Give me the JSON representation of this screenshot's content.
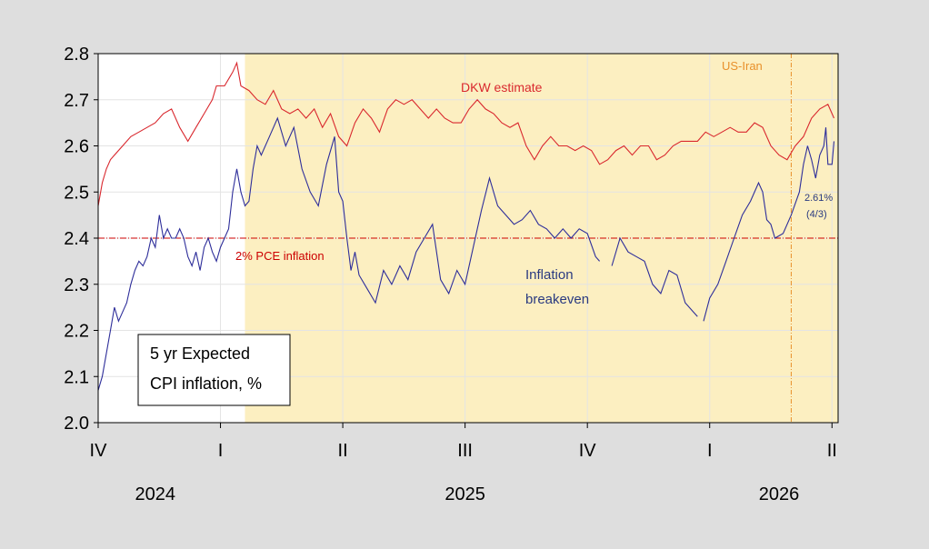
{
  "chart_data": {
    "type": "line",
    "title_lines": [
      "5 yr Expected",
      "CPI inflation, %"
    ],
    "ylim": [
      2.0,
      2.8
    ],
    "yticks": [
      "2.0",
      "2.1",
      "2.2",
      "2.3",
      "2.4",
      "2.5",
      "2.6",
      "2.7",
      "2.8"
    ],
    "x_range_months": [
      0,
      18.15
    ],
    "quarter_ticks": [
      {
        "label": "IV",
        "m": 0
      },
      {
        "label": "I",
        "m": 3
      },
      {
        "label": "II",
        "m": 6
      },
      {
        "label": "III",
        "m": 9
      },
      {
        "label": "IV",
        "m": 12
      },
      {
        "label": "I",
        "m": 15
      },
      {
        "label": "II",
        "m": 18
      }
    ],
    "years": [
      {
        "label": "2024",
        "m": 1.4
      },
      {
        "label": "2025",
        "m": 9.0
      },
      {
        "label": "2026",
        "m": 16.7
      }
    ],
    "shade_start_m": 3.6,
    "reference_line": {
      "value": 2.4,
      "label": "2% PCE inflation",
      "color": "#cc0000"
    },
    "event_line": {
      "m": 17.0,
      "label": "US-Iran",
      "color": "#e8902a"
    },
    "shade_color": "#fcefc1",
    "series": [
      {
        "name": "DKW estimate",
        "color": "#d9282e",
        "points": [
          [
            0,
            2.47
          ],
          [
            0.1,
            2.52
          ],
          [
            0.2,
            2.55
          ],
          [
            0.3,
            2.57
          ],
          [
            0.4,
            2.58
          ],
          [
            0.6,
            2.6
          ],
          [
            0.8,
            2.62
          ],
          [
            1.0,
            2.63
          ],
          [
            1.2,
            2.64
          ],
          [
            1.4,
            2.65
          ],
          [
            1.6,
            2.67
          ],
          [
            1.8,
            2.68
          ],
          [
            2.0,
            2.64
          ],
          [
            2.2,
            2.61
          ],
          [
            2.4,
            2.64
          ],
          [
            2.6,
            2.67
          ],
          [
            2.8,
            2.7
          ],
          [
            2.9,
            2.73
          ],
          [
            3.1,
            2.73
          ],
          [
            3.3,
            2.76
          ],
          [
            3.4,
            2.78
          ],
          [
            3.5,
            2.73
          ],
          [
            3.7,
            2.72
          ],
          [
            3.9,
            2.7
          ],
          [
            4.1,
            2.69
          ],
          [
            4.3,
            2.72
          ],
          [
            4.5,
            2.68
          ],
          [
            4.7,
            2.67
          ],
          [
            4.9,
            2.68
          ],
          [
            5.1,
            2.66
          ],
          [
            5.3,
            2.68
          ],
          [
            5.5,
            2.64
          ],
          [
            5.7,
            2.67
          ],
          [
            5.9,
            2.62
          ],
          [
            6.1,
            2.6
          ],
          [
            6.3,
            2.65
          ],
          [
            6.5,
            2.68
          ],
          [
            6.7,
            2.66
          ],
          [
            6.9,
            2.63
          ],
          [
            7.1,
            2.68
          ],
          [
            7.3,
            2.7
          ],
          [
            7.5,
            2.69
          ],
          [
            7.7,
            2.7
          ],
          [
            7.9,
            2.68
          ],
          [
            8.1,
            2.66
          ],
          [
            8.3,
            2.68
          ],
          [
            8.5,
            2.66
          ],
          [
            8.7,
            2.65
          ],
          [
            8.9,
            2.65
          ],
          [
            9.1,
            2.68
          ],
          [
            9.3,
            2.7
          ],
          [
            9.5,
            2.68
          ],
          [
            9.7,
            2.67
          ],
          [
            9.9,
            2.65
          ],
          [
            10.1,
            2.64
          ],
          [
            10.3,
            2.65
          ],
          [
            10.5,
            2.6
          ],
          [
            10.7,
            2.57
          ],
          [
            10.9,
            2.6
          ],
          [
            11.1,
            2.62
          ],
          [
            11.3,
            2.6
          ],
          [
            11.5,
            2.6
          ],
          [
            11.7,
            2.59
          ],
          [
            11.9,
            2.6
          ],
          [
            12.1,
            2.59
          ],
          [
            12.3,
            2.56
          ],
          [
            12.5,
            2.57
          ],
          [
            12.7,
            2.59
          ],
          [
            12.9,
            2.6
          ],
          [
            13.1,
            2.58
          ],
          [
            13.3,
            2.6
          ],
          [
            13.5,
            2.6
          ],
          [
            13.7,
            2.57
          ],
          [
            13.9,
            2.58
          ],
          [
            14.1,
            2.6
          ],
          [
            14.3,
            2.61
          ],
          [
            14.5,
            2.61
          ],
          [
            14.7,
            2.61
          ],
          [
            14.9,
            2.63
          ],
          [
            15.1,
            2.62
          ],
          [
            15.3,
            2.63
          ],
          [
            15.5,
            2.64
          ],
          [
            15.7,
            2.63
          ],
          [
            15.9,
            2.63
          ],
          [
            16.1,
            2.65
          ],
          [
            16.3,
            2.64
          ],
          [
            16.5,
            2.6
          ],
          [
            16.7,
            2.58
          ],
          [
            16.9,
            2.57
          ],
          [
            17.1,
            2.6
          ],
          [
            17.3,
            2.62
          ],
          [
            17.5,
            2.66
          ],
          [
            17.7,
            2.68
          ],
          [
            17.9,
            2.69
          ],
          [
            18.0,
            2.67
          ],
          [
            18.05,
            2.66
          ]
        ]
      },
      {
        "name": "Inflation breakeven",
        "color": "#2e2e9a",
        "segments": [
          [
            [
              0,
              2.07
            ],
            [
              0.1,
              2.1
            ],
            [
              0.2,
              2.15
            ],
            [
              0.3,
              2.2
            ],
            [
              0.4,
              2.25
            ],
            [
              0.5,
              2.22
            ],
            [
              0.6,
              2.24
            ],
            [
              0.7,
              2.26
            ],
            [
              0.8,
              2.3
            ],
            [
              0.9,
              2.33
            ],
            [
              1.0,
              2.35
            ],
            [
              1.1,
              2.34
            ],
            [
              1.2,
              2.36
            ],
            [
              1.3,
              2.4
            ],
            [
              1.4,
              2.38
            ],
            [
              1.5,
              2.45
            ],
            [
              1.6,
              2.4
            ],
            [
              1.7,
              2.42
            ],
            [
              1.8,
              2.4
            ],
            [
              1.9,
              2.4
            ],
            [
              2.0,
              2.42
            ],
            [
              2.1,
              2.4
            ],
            [
              2.2,
              2.36
            ],
            [
              2.3,
              2.34
            ],
            [
              2.4,
              2.37
            ],
            [
              2.5,
              2.33
            ],
            [
              2.6,
              2.38
            ],
            [
              2.7,
              2.4
            ],
            [
              2.8,
              2.37
            ],
            [
              2.9,
              2.35
            ],
            [
              3.0,
              2.38
            ],
            [
              3.1,
              2.4
            ],
            [
              3.2,
              2.42
            ],
            [
              3.3,
              2.5
            ],
            [
              3.4,
              2.55
            ],
            [
              3.5,
              2.5
            ],
            [
              3.6,
              2.47
            ],
            [
              3.7,
              2.48
            ],
            [
              3.8,
              2.55
            ],
            [
              3.9,
              2.6
            ],
            [
              4.0,
              2.58
            ],
            [
              4.2,
              2.62
            ],
            [
              4.4,
              2.66
            ],
            [
              4.6,
              2.6
            ],
            [
              4.8,
              2.64
            ],
            [
              5.0,
              2.55
            ],
            [
              5.2,
              2.5
            ],
            [
              5.4,
              2.47
            ],
            [
              5.6,
              2.56
            ],
            [
              5.8,
              2.62
            ],
            [
              5.9,
              2.5
            ],
            [
              6.0,
              2.48
            ],
            [
              6.1,
              2.4
            ],
            [
              6.2,
              2.33
            ],
            [
              6.3,
              2.37
            ],
            [
              6.4,
              2.32
            ],
            [
              6.6,
              2.29
            ],
            [
              6.8,
              2.26
            ],
            [
              7.0,
              2.33
            ],
            [
              7.2,
              2.3
            ],
            [
              7.4,
              2.34
            ],
            [
              7.6,
              2.31
            ],
            [
              7.8,
              2.37
            ],
            [
              8.0,
              2.4
            ],
            [
              8.2,
              2.43
            ],
            [
              8.4,
              2.31
            ],
            [
              8.6,
              2.28
            ],
            [
              8.8,
              2.33
            ],
            [
              9.0,
              2.3
            ],
            [
              9.2,
              2.38
            ],
            [
              9.4,
              2.46
            ],
            [
              9.6,
              2.53
            ],
            [
              9.8,
              2.47
            ],
            [
              10.0,
              2.45
            ],
            [
              10.2,
              2.43
            ],
            [
              10.4,
              2.44
            ],
            [
              10.6,
              2.46
            ],
            [
              10.8,
              2.43
            ],
            [
              11.0,
              2.42
            ],
            [
              11.2,
              2.4
            ],
            [
              11.4,
              2.42
            ],
            [
              11.6,
              2.4
            ],
            [
              11.8,
              2.42
            ],
            [
              12.0,
              2.41
            ],
            [
              12.2,
              2.36
            ],
            [
              12.3,
              2.35
            ]
          ],
          [
            [
              12.6,
              2.34
            ],
            [
              12.8,
              2.4
            ],
            [
              13.0,
              2.37
            ],
            [
              13.2,
              2.36
            ],
            [
              13.4,
              2.35
            ],
            [
              13.6,
              2.3
            ],
            [
              13.8,
              2.28
            ],
            [
              14.0,
              2.33
            ],
            [
              14.2,
              2.32
            ],
            [
              14.4,
              2.26
            ],
            [
              14.6,
              2.24
            ],
            [
              14.7,
              2.23
            ]
          ],
          [
            [
              14.85,
              2.22
            ],
            [
              15.0,
              2.27
            ],
            [
              15.2,
              2.3
            ],
            [
              15.4,
              2.35
            ],
            [
              15.6,
              2.4
            ],
            [
              15.8,
              2.45
            ],
            [
              16.0,
              2.48
            ],
            [
              16.2,
              2.52
            ],
            [
              16.3,
              2.5
            ],
            [
              16.4,
              2.44
            ],
            [
              16.5,
              2.43
            ],
            [
              16.6,
              2.4
            ],
            [
              16.8,
              2.41
            ],
            [
              17.0,
              2.45
            ],
            [
              17.2,
              2.5
            ],
            [
              17.3,
              2.56
            ],
            [
              17.4,
              2.6
            ],
            [
              17.5,
              2.57
            ],
            [
              17.6,
              2.53
            ],
            [
              17.7,
              2.58
            ],
            [
              17.8,
              2.6
            ],
            [
              17.85,
              2.64
            ],
            [
              17.9,
              2.56
            ],
            [
              18.0,
              2.56
            ],
            [
              18.05,
              2.61
            ]
          ]
        ]
      }
    ],
    "annotations": {
      "dkw_label": "DKW estimate",
      "breakeven_label_1": "Inflation",
      "breakeven_label_2": "breakeven",
      "last_value": "2.61%",
      "last_date": "(4/3)"
    }
  }
}
